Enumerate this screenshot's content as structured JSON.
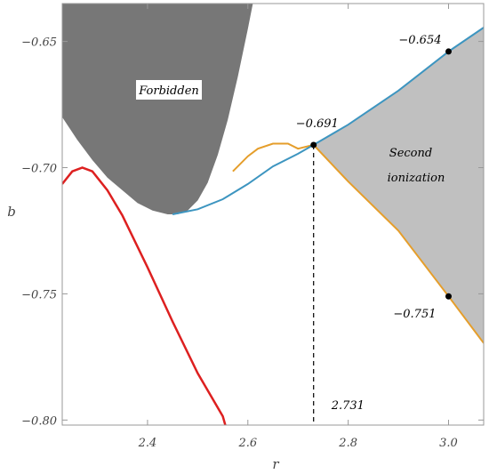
{
  "chart_data": {
    "type": "line",
    "title": "",
    "xlabel": "r",
    "ylabel": "b",
    "xlim": [
      2.23,
      3.07
    ],
    "ylim": [
      -0.802,
      -0.635
    ],
    "x_ticks": [
      2.4,
      2.6,
      2.8,
      3.0
    ],
    "x_tick_labels": [
      "2.4",
      "2.6",
      "2.8",
      "3.0"
    ],
    "y_ticks": [
      -0.65,
      -0.7,
      -0.75,
      -0.8
    ],
    "y_tick_labels": [
      "−0.65",
      "−0.70",
      "−0.75",
      "−0.80"
    ],
    "grid": false,
    "colors": {
      "forbidden": "#777777",
      "second_ionization": "#c0c0c0",
      "blue": "#3d95c0",
      "orange": "#e59e2b",
      "red": "#dd2020",
      "frame": "#999999"
    },
    "regions": [
      {
        "label": "Forbidden",
        "boundary": [
          [
            2.23,
            -0.68
          ],
          [
            2.26,
            -0.689
          ],
          [
            2.29,
            -0.697
          ],
          [
            2.32,
            -0.704
          ],
          [
            2.35,
            -0.709
          ],
          [
            2.38,
            -0.714
          ],
          [
            2.41,
            -0.717
          ],
          [
            2.44,
            -0.7185
          ],
          [
            2.46,
            -0.7185
          ],
          [
            2.48,
            -0.717
          ],
          [
            2.5,
            -0.713
          ],
          [
            2.52,
            -0.706
          ],
          [
            2.54,
            -0.695
          ],
          [
            2.56,
            -0.681
          ],
          [
            2.58,
            -0.664
          ],
          [
            2.6,
            -0.645
          ],
          [
            2.61,
            -0.635
          ]
        ]
      },
      {
        "label_lines": [
          "Second",
          "ionization"
        ],
        "upper_boundary": "blue",
        "lower_boundary": "orange",
        "x_range": [
          2.731,
          3.07
        ]
      }
    ],
    "series": [
      {
        "key": "blue",
        "values": [
          [
            2.45,
            -0.7185
          ],
          [
            2.5,
            -0.7165
          ],
          [
            2.55,
            -0.7125
          ],
          [
            2.6,
            -0.7065
          ],
          [
            2.65,
            -0.6995
          ],
          [
            2.7,
            -0.6945
          ],
          [
            2.731,
            -0.691
          ],
          [
            2.8,
            -0.683
          ],
          [
            2.9,
            -0.6695
          ],
          [
            3.0,
            -0.654
          ],
          [
            3.07,
            -0.6445
          ]
        ]
      },
      {
        "key": "orange",
        "values": [
          [
            2.57,
            -0.7015
          ],
          [
            2.6,
            -0.6955
          ],
          [
            2.62,
            -0.6925
          ],
          [
            2.65,
            -0.6905
          ],
          [
            2.68,
            -0.6905
          ],
          [
            2.7,
            -0.6925
          ],
          [
            2.731,
            -0.691
          ],
          [
            2.8,
            -0.7055
          ],
          [
            2.9,
            -0.725
          ],
          [
            3.0,
            -0.751
          ],
          [
            3.07,
            -0.7695
          ]
        ]
      },
      {
        "key": "red",
        "values": [
          [
            2.23,
            -0.7065
          ],
          [
            2.25,
            -0.7015
          ],
          [
            2.27,
            -0.7
          ],
          [
            2.29,
            -0.7015
          ],
          [
            2.32,
            -0.709
          ],
          [
            2.35,
            -0.719
          ],
          [
            2.4,
            -0.7395
          ],
          [
            2.45,
            -0.761
          ],
          [
            2.5,
            -0.7815
          ],
          [
            2.55,
            -0.7985
          ],
          [
            2.555,
            -0.802
          ]
        ]
      }
    ],
    "points": [
      {
        "x": 2.731,
        "y": -0.691,
        "label": "−0.691"
      },
      {
        "x": 3.0,
        "y": -0.654,
        "label": "−0.654"
      },
      {
        "x": 3.0,
        "y": -0.751,
        "label": "−0.751"
      }
    ],
    "vline": {
      "x": 2.731,
      "label": "2.731"
    }
  }
}
